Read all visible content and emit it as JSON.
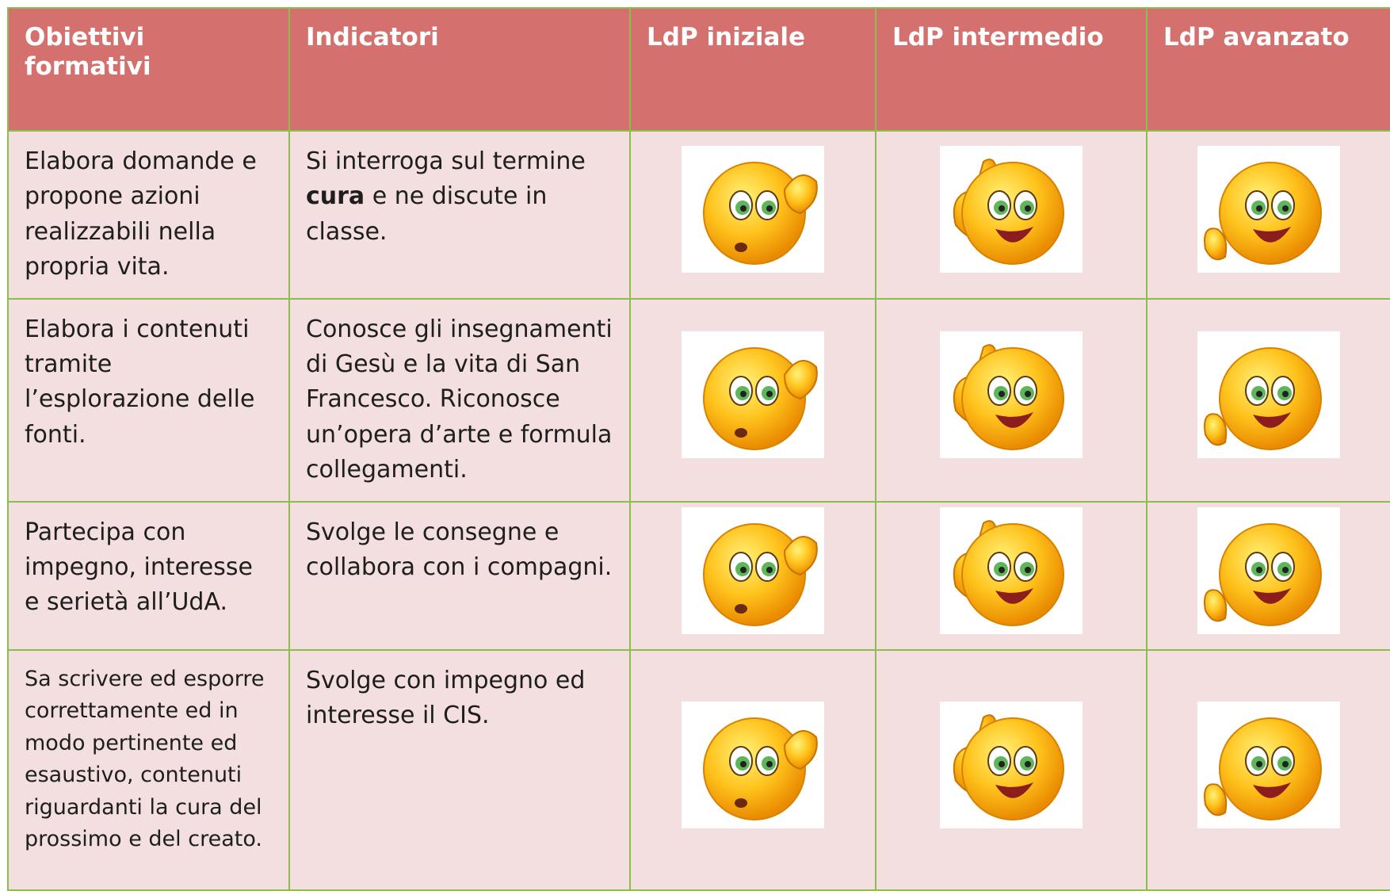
{
  "header": [
    "Obiettivi formativi",
    "Indicatori",
    "LdP iniziale",
    "LdP intermedio",
    "LdP avanzato"
  ],
  "rows": [
    {
      "objective": "Elabora domande e propone azioni realizzabili nella propria vita.",
      "indicator": {
        "before": "Si interroga sul termine ",
        "bold": "cura",
        "after": " e ne discute in classe."
      }
    },
    {
      "objective": "Elabora i contenuti tramite l’esplorazione delle fonti.",
      "indicator": {
        "before": "Conosce gli insegnamenti di Gesù e la vita di San Francesco. Riconosce un’opera d’arte e formula collegamenti."
      }
    },
    {
      "objective": "Partecipa con impegno, interesse e serietà all’UdA.",
      "indicator": {
        "before": "Svolge le consegne e collabora con i compagni."
      }
    },
    {
      "objective": "Sa scrivere ed esporre correttamente ed in modo pertinente ed esaustivo, contenuti riguardanti la cura del prossimo e del creato.",
      "indicator": {
        "before": "Svolge con impegno ed interesse il CIS."
      }
    }
  ]
}
